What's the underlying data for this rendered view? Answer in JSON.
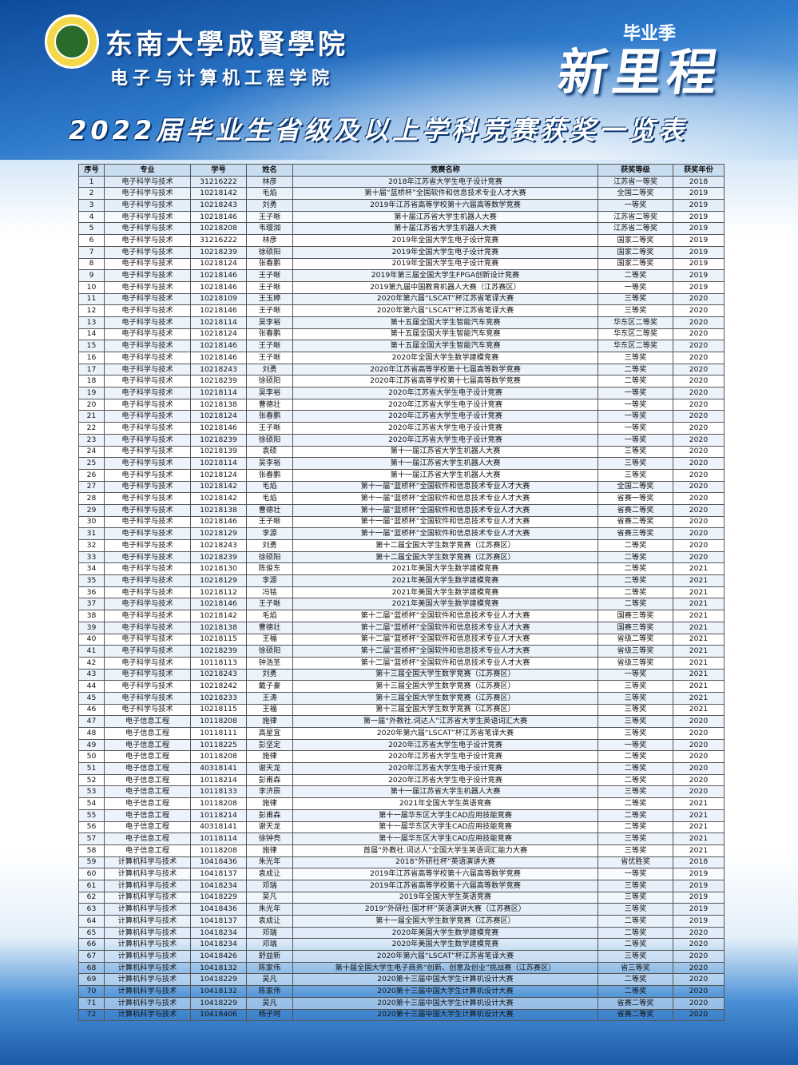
{
  "header": {
    "university": "东南大學成賢學院",
    "school": "电子与计算机工程学院",
    "season": "毕业季",
    "slogan": "新里程",
    "title": "2022届毕业生省级及以上学科竞赛获奖一览表"
  },
  "table": {
    "columns": [
      "序号",
      "专业",
      "学号",
      "姓名",
      "竞赛名称",
      "获奖等级",
      "获奖年份"
    ],
    "rows": [
      [
        "1",
        "电子科学与技术",
        "31216222",
        "林彦",
        "2018年江苏省大学生电子设计竞赛",
        "江苏省一等奖",
        "2018"
      ],
      [
        "2",
        "电子科学与技术",
        "10218142",
        "毛焰",
        "第十届“蓝桥杯”全国软件和信息技术专业人才大赛",
        "全国二等奖",
        "2019"
      ],
      [
        "3",
        "电子科学与技术",
        "10218243",
        "刘勇",
        "2019年江苏省高等学校第十六届高等数学竞赛",
        "一等奖",
        "2019"
      ],
      [
        "4",
        "电子科学与技术",
        "10218146",
        "王子晰",
        "第十届江苏省大学生机器人大赛",
        "江苏省二等奖",
        "2019"
      ],
      [
        "5",
        "电子科学与技术",
        "10218208",
        "韦璎洳",
        "第十届江苏省大学生机器人大赛",
        "江苏省二等奖",
        "2019"
      ],
      [
        "6",
        "电子科学与技术",
        "31216222",
        "林彦",
        "2019年全国大学生电子设计竞赛",
        "国家二等奖",
        "2019"
      ],
      [
        "7",
        "电子科学与技术",
        "10218239",
        "徐硕阳",
        "2019年全国大学生电子设计竞赛",
        "国家二等奖",
        "2019"
      ],
      [
        "8",
        "电子科学与技术",
        "10218124",
        "张春鹏",
        "2019年全国大学生电子设计竞赛",
        "国家二等奖",
        "2019"
      ],
      [
        "9",
        "电子科学与技术",
        "10218146",
        "王子晰",
        "2019年第三届全国大学生FPGA创新设计竞赛",
        "二等奖",
        "2019"
      ],
      [
        "10",
        "电子科学与技术",
        "10218146",
        "王子晰",
        "2019第九届中国教育机器人大赛（江苏赛区）",
        "一等奖",
        "2019"
      ],
      [
        "11",
        "电子科学与技术",
        "10218109",
        "王玉婷",
        "2020年第六届“LSCAT”杯江苏省笔译大赛",
        "三等奖",
        "2020"
      ],
      [
        "12",
        "电子科学与技术",
        "10218146",
        "王子晰",
        "2020年第六届“LSCAT”杯江苏省笔译大赛",
        "三等奖",
        "2020"
      ],
      [
        "13",
        "电子科学与技术",
        "10218114",
        "吴李裕",
        "第十五届全国大学生智能汽车竞赛",
        "华东区二等奖",
        "2020"
      ],
      [
        "14",
        "电子科学与技术",
        "10218124",
        "张春鹏",
        "第十五届全国大学生智能汽车竞赛",
        "华东区二等奖",
        "2020"
      ],
      [
        "15",
        "电子科学与技术",
        "10218146",
        "王子晰",
        "第十五届全国大学生智能汽车竞赛",
        "华东区二等奖",
        "2020"
      ],
      [
        "16",
        "电子科学与技术",
        "10218146",
        "王子晰",
        "2020年全国大学生数学建模竞赛",
        "三等奖",
        "2020"
      ],
      [
        "17",
        "电子科学与技术",
        "10218243",
        "刘勇",
        "2020年江苏省高等学校第十七届高等数学竞赛",
        "二等奖",
        "2020"
      ],
      [
        "18",
        "电子科学与技术",
        "10218239",
        "徐硕阳",
        "2020年江苏省高等学校第十七届高等数学竞赛",
        "二等奖",
        "2020"
      ],
      [
        "19",
        "电子科学与技术",
        "10218114",
        "吴李裕",
        "2020年江苏省大学生电子设计竞赛",
        "一等奖",
        "2020"
      ],
      [
        "20",
        "电子科学与技术",
        "10218138",
        "曹德壮",
        "2020年江苏省大学生电子设计竞赛",
        "一等奖",
        "2020"
      ],
      [
        "21",
        "电子科学与技术",
        "10218124",
        "张春鹏",
        "2020年江苏省大学生电子设计竞赛",
        "一等奖",
        "2020"
      ],
      [
        "22",
        "电子科学与技术",
        "10218146",
        "王子晰",
        "2020年江苏省大学生电子设计竞赛",
        "一等奖",
        "2020"
      ],
      [
        "23",
        "电子科学与技术",
        "10218239",
        "徐硕阳",
        "2020年江苏省大学生电子设计竞赛",
        "一等奖",
        "2020"
      ],
      [
        "24",
        "电子科学与技术",
        "10218139",
        "袁硕",
        "第十一届江苏省大学生机器人大赛",
        "三等奖",
        "2020"
      ],
      [
        "25",
        "电子科学与技术",
        "10218114",
        "吴李裕",
        "第十一届江苏省大学生机器人大赛",
        "三等奖",
        "2020"
      ],
      [
        "26",
        "电子科学与技术",
        "10218124",
        "张春鹏",
        "第十一届江苏省大学生机器人大赛",
        "三等奖",
        "2020"
      ],
      [
        "27",
        "电子科学与技术",
        "10218142",
        "毛焰",
        "第十一届“蓝桥杯”全国软件和信息技术专业人才大赛",
        "全国二等奖",
        "2020"
      ],
      [
        "28",
        "电子科学与技术",
        "10218142",
        "毛焰",
        "第十一届“蓝桥杯”全国软件和信息技术专业人才大赛",
        "省赛一等奖",
        "2020"
      ],
      [
        "29",
        "电子科学与技术",
        "10218138",
        "曹德壮",
        "第十一届“蓝桥杯”全国软件和信息技术专业人才大赛",
        "省赛二等奖",
        "2020"
      ],
      [
        "30",
        "电子科学与技术",
        "10218146",
        "王子晰",
        "第十一届“蓝桥杯”全国软件和信息技术专业人才大赛",
        "省赛二等奖",
        "2020"
      ],
      [
        "31",
        "电子科学与技术",
        "10218129",
        "李源",
        "第十一届“蓝桥杯”全国软件和信息技术专业人才大赛",
        "省赛三等奖",
        "2020"
      ],
      [
        "32",
        "电子科学与技术",
        "10218243",
        "刘勇",
        "第十二届全国大学生数学竞赛（江苏赛区）",
        "二等奖",
        "2020"
      ],
      [
        "33",
        "电子科学与技术",
        "10218239",
        "徐硕阳",
        "第十二届全国大学生数学竞赛（江苏赛区）",
        "二等奖",
        "2020"
      ],
      [
        "34",
        "电子科学与技术",
        "10218130",
        "陈俊东",
        "2021年美国大学生数学建模竞赛",
        "二等奖",
        "2021"
      ],
      [
        "35",
        "电子科学与技术",
        "10218129",
        "李源",
        "2021年美国大学生数学建模竞赛",
        "二等奖",
        "2021"
      ],
      [
        "36",
        "电子科学与技术",
        "10218112",
        "冯铭",
        "2021年美国大学生数学建模竞赛",
        "二等奖",
        "2021"
      ],
      [
        "37",
        "电子科学与技术",
        "10218146",
        "王子晰",
        "2021年美国大学生数学建模竞赛",
        "二等奖",
        "2021"
      ],
      [
        "38",
        "电子科学与技术",
        "10218142",
        "毛焰",
        "第十二届“蓝桥杯”全国软件和信息技术专业人才大赛",
        "国赛三等奖",
        "2021"
      ],
      [
        "39",
        "电子科学与技术",
        "10218138",
        "曹德壮",
        "第十二届“蓝桥杯”全国软件和信息技术专业人才大赛",
        "国赛三等奖",
        "2021"
      ],
      [
        "40",
        "电子科学与技术",
        "10218115",
        "王福",
        "第十二届“蓝桥杯”全国软件和信息技术专业人才大赛",
        "省级二等奖",
        "2021"
      ],
      [
        "41",
        "电子科学与技术",
        "10218239",
        "徐硕阳",
        "第十二届“蓝桥杯”全国软件和信息技术专业人才大赛",
        "省级三等奖",
        "2021"
      ],
      [
        "42",
        "电子科学与技术",
        "10118113",
        "钟浩圣",
        "第十二届“蓝桥杯”全国软件和信息技术专业人才大赛",
        "省级三等奖",
        "2021"
      ],
      [
        "43",
        "电子科学与技术",
        "10218243",
        "刘勇",
        "第十三届全国大学生数学竞赛（江苏赛区）",
        "一等奖",
        "2021"
      ],
      [
        "44",
        "电子科学与技术",
        "10218242",
        "戴子豪",
        "第十三届全国大学生数学竞赛（江苏赛区）",
        "三等奖",
        "2021"
      ],
      [
        "45",
        "电子科学与技术",
        "10218233",
        "王涛",
        "第十三届全国大学生数学竞赛（江苏赛区）",
        "三等奖",
        "2021"
      ],
      [
        "46",
        "电子科学与技术",
        "10218115",
        "王福",
        "第十三届全国大学生数学竞赛（江苏赛区）",
        "三等奖",
        "2021"
      ],
      [
        "47",
        "电子信息工程",
        "10118208",
        "施律",
        "第一届“外教社.词达人”江苏省大学生英语词汇大赛",
        "三等奖",
        "2020"
      ],
      [
        "48",
        "电子信息工程",
        "10118111",
        "高星宜",
        "2020年第六届“LSCAT”杯江苏省笔译大赛",
        "三等奖",
        "2020"
      ],
      [
        "49",
        "电子信息工程",
        "10118225",
        "彭坚定",
        "2020年江苏省大学生电子设计竞赛",
        "一等奖",
        "2020"
      ],
      [
        "50",
        "电子信息工程",
        "10118208",
        "施律",
        "2020年江苏省大学生电子设计竞赛",
        "二等奖",
        "2020"
      ],
      [
        "51",
        "电子信息工程",
        "40318141",
        "谢天龙",
        "2020年江苏省大学生电子设计竞赛",
        "二等奖",
        "2020"
      ],
      [
        "52",
        "电子信息工程",
        "10118214",
        "彭甫森",
        "2020年江苏省大学生电子设计竞赛",
        "二等奖",
        "2020"
      ],
      [
        "53",
        "电子信息工程",
        "10118133",
        "李济辰",
        "第十一届江苏省大学生机器人大赛",
        "三等奖",
        "2020"
      ],
      [
        "54",
        "电子信息工程",
        "10118208",
        "施律",
        "2021年全国大学生英语竞赛",
        "二等奖",
        "2021"
      ],
      [
        "55",
        "电子信息工程",
        "10118214",
        "彭甫森",
        "第十一届华东区大学生CAD应用技能竞赛",
        "二等奖",
        "2021"
      ],
      [
        "56",
        "电子信息工程",
        "40318141",
        "谢天龙",
        "第十一届华东区大学生CAD应用技能竞赛",
        "二等奖",
        "2021"
      ],
      [
        "57",
        "电子信息工程",
        "10118114",
        "徐钟亮",
        "第十一届华东区大学生CAD应用技能竞赛",
        "三等奖",
        "2021"
      ],
      [
        "58",
        "电子信息工程",
        "10118208",
        "施律",
        "首届“外教社.词达人”全国大学生英语词汇能力大赛",
        "三等奖",
        "2021"
      ],
      [
        "59",
        "计算机科学与技术",
        "10418436",
        "朱光年",
        "2018“外研社杯”英语演讲大赛",
        "省优胜奖",
        "2018"
      ],
      [
        "60",
        "计算机科学与技术",
        "10418137",
        "袁成让",
        "2019年江苏省高等学校第十六届高等数学竞赛",
        "一等奖",
        "2019"
      ],
      [
        "61",
        "计算机科学与技术",
        "10418234",
        "邓瑞",
        "2019年江苏省高等学校第十六届高等数学竞赛",
        "三等奖",
        "2019"
      ],
      [
        "62",
        "计算机科学与技术",
        "10418229",
        "吴凡",
        "2019年全国大学生英语竞赛",
        "三等奖",
        "2019"
      ],
      [
        "63",
        "计算机科学与技术",
        "10418436",
        "朱光年",
        "2019“外研社·国才杯”英语演讲大赛（江苏赛区）",
        "三等奖",
        "2019"
      ],
      [
        "64",
        "计算机科学与技术",
        "10418137",
        "袁成让",
        "第十一届全国大学生数学竞赛（江苏赛区）",
        "二等奖",
        "2019"
      ],
      [
        "65",
        "计算机科学与技术",
        "10418234",
        "邓瑞",
        "2020年美国大学生数学建模竞赛",
        "二等奖",
        "2020"
      ],
      [
        "66",
        "计算机科学与技术",
        "10418234",
        "邓瑞",
        "2020年美国大学生数学建模竞赛",
        "二等奖",
        "2020"
      ],
      [
        "67",
        "计算机科学与技术",
        "10418426",
        "舒益新",
        "2020年第六届“LSCAT”杯江苏省笔译大赛",
        "三等奖",
        "2020"
      ],
      [
        "68",
        "计算机科学与技术",
        "10418132",
        "陈家伟",
        "第十届全国大学生电子商务“创新、创意及创业”挑战赛（江苏赛区）",
        "省三等奖",
        "2020"
      ],
      [
        "69",
        "计算机科学与技术",
        "10418229",
        "吴凡",
        "2020第十三届中国大学生计算机设计大赛",
        "二等奖",
        "2020"
      ],
      [
        "70",
        "计算机科学与技术",
        "10418132",
        "陈家伟",
        "2020第十三届中国大学生计算机设计大赛",
        "二等奖",
        "2020"
      ],
      [
        "71",
        "计算机科学与技术",
        "10418229",
        "吴凡",
        "2020第十三届中国大学生计算机设计大赛",
        "省赛二等奖",
        "2020"
      ],
      [
        "72",
        "计算机科学与技术",
        "10418406",
        "杨子珂",
        "2020第十三届中国大学生计算机设计大赛",
        "省赛二等奖",
        "2020"
      ]
    ]
  }
}
